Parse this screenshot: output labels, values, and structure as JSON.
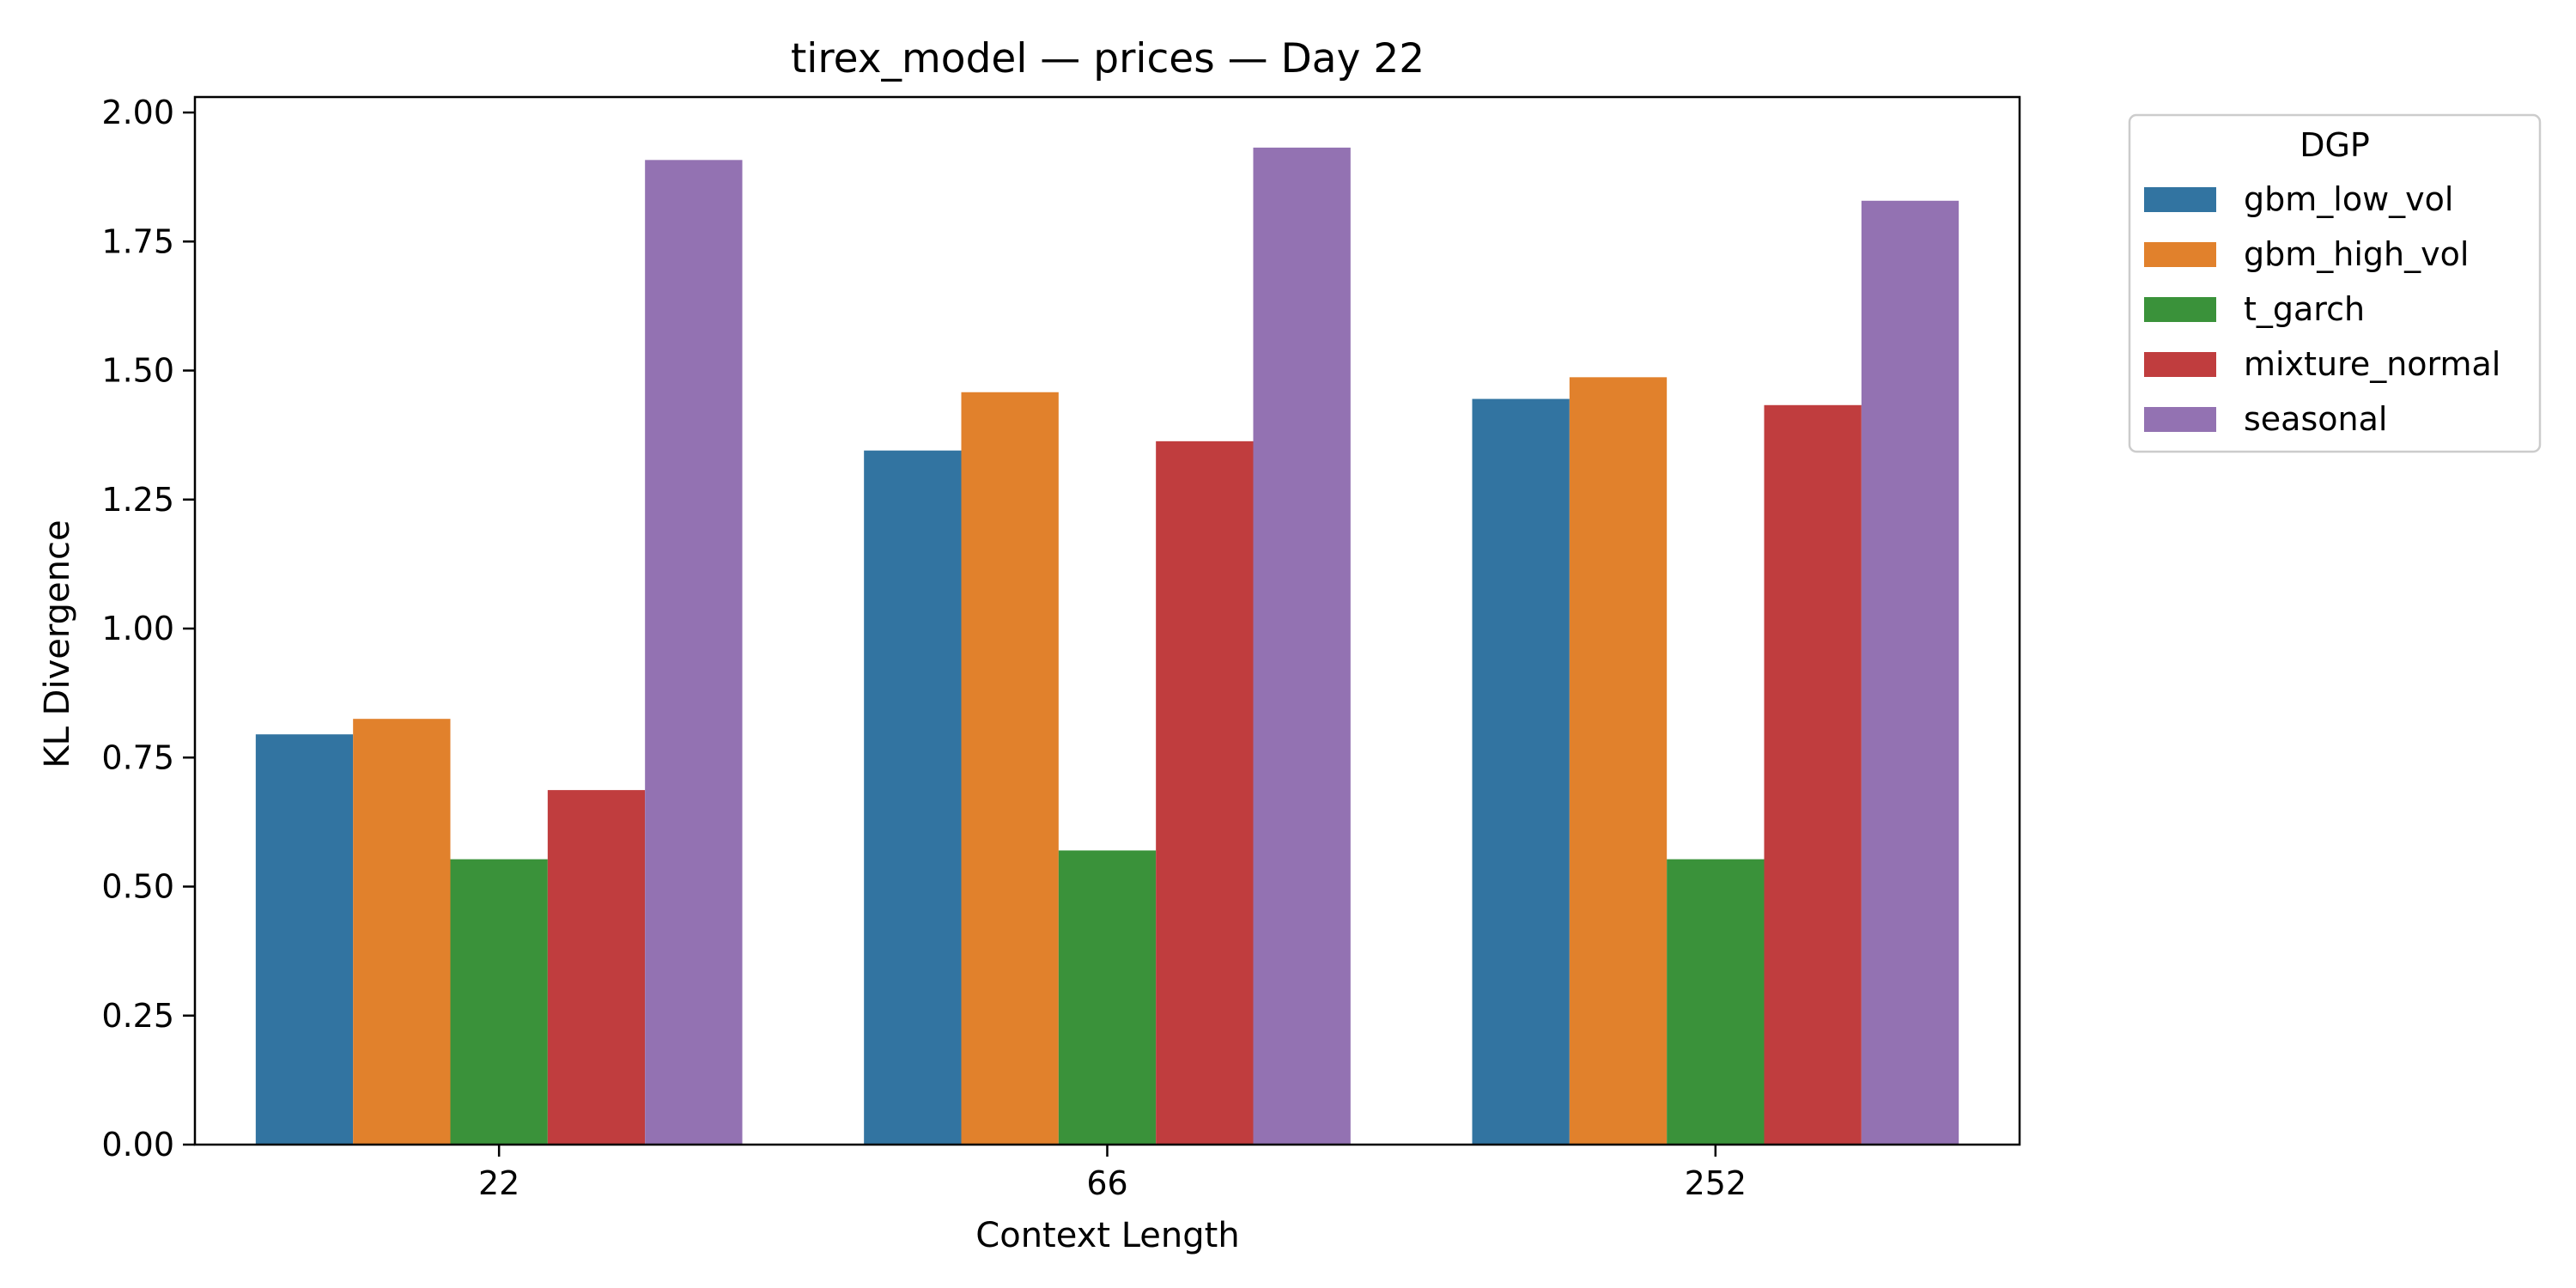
{
  "chart_data": {
    "type": "bar",
    "title": "tirex_model — prices — Day 22",
    "xlabel": "Context Length",
    "ylabel": "KL Divergence",
    "categories": [
      "22",
      "66",
      "252"
    ],
    "ylim": [
      0,
      2.03
    ],
    "yticks": [
      "0.00",
      "0.25",
      "0.50",
      "0.75",
      "1.00",
      "1.25",
      "1.50",
      "1.75",
      "2.00"
    ],
    "ytick_values": [
      0,
      0.25,
      0.5,
      0.75,
      1.0,
      1.25,
      1.5,
      1.75,
      2.0
    ],
    "grid": false,
    "legend": {
      "title": "DGP",
      "placement": "outside-top-right"
    },
    "series": [
      {
        "name": "gbm_low_vol",
        "color": "#3274a1",
        "values": [
          0.795,
          1.345,
          1.445
        ]
      },
      {
        "name": "gbm_high_vol",
        "color": "#e1812c",
        "values": [
          0.825,
          1.458,
          1.487
        ]
      },
      {
        "name": "t_garch",
        "color": "#3a923a",
        "values": [
          0.553,
          0.57,
          0.553
        ]
      },
      {
        "name": "mixture_normal",
        "color": "#c03d3e",
        "values": [
          0.687,
          1.363,
          1.433
        ]
      },
      {
        "name": "seasonal",
        "color": "#9372b2",
        "values": [
          1.908,
          1.932,
          1.829
        ]
      }
    ]
  }
}
